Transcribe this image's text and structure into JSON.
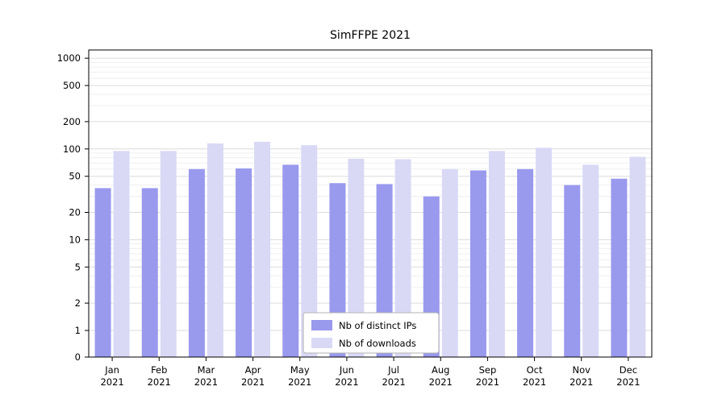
{
  "chart_data": {
    "type": "bar",
    "title": "SimFFPE 2021",
    "categories": [
      "Jan 2021",
      "Feb 2021",
      "Mar 2021",
      "Apr 2021",
      "May 2021",
      "Jun 2021",
      "Jul 2021",
      "Aug 2021",
      "Sep 2021",
      "Oct 2021",
      "Nov 2021",
      "Dec 2021"
    ],
    "series": [
      {
        "name": "Nb of distinct IPs",
        "color": "#9999ee",
        "values": [
          37,
          37,
          60,
          61,
          67,
          42,
          41,
          30,
          58,
          60,
          40,
          47
        ]
      },
      {
        "name": "Nb of downloads",
        "color": "#d9d9f6",
        "values": [
          95,
          95,
          115,
          120,
          110,
          78,
          77,
          60,
          95,
          103,
          67,
          82
        ]
      }
    ],
    "yscale": "symlog",
    "yticks": [
      0,
      1,
      2,
      5,
      10,
      20,
      50,
      100,
      200,
      500,
      1000
    ],
    "minor_gridlines": [
      3,
      4,
      6,
      7,
      8,
      9,
      30,
      40,
      60,
      70,
      80,
      90,
      300,
      400,
      600,
      700,
      800,
      900
    ],
    "ylim": [
      0,
      1200
    ],
    "xlabel": "",
    "ylabel": "",
    "grid": true,
    "legend_position": "lower center",
    "colors": {
      "grid_major": "#dcdcdc",
      "grid_minor": "#ececec",
      "axis": "#000000",
      "legend_border": "#b3b3b3",
      "background": "#ffffff"
    }
  }
}
